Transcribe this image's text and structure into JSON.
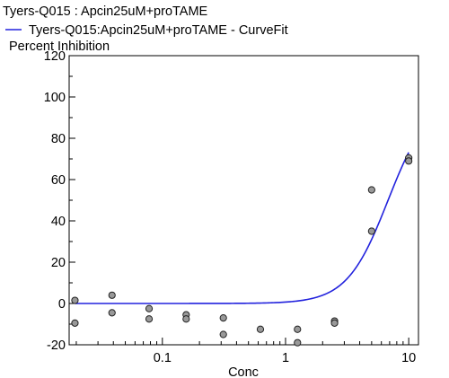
{
  "chart_data": {
    "type": "scatter",
    "title": "Tyers-Q015  : Apcin25uM+proTAME",
    "legend": {
      "placement": "top-left",
      "entries": [
        {
          "label": "Tyers-Q015:Apcin25uM+proTAME - CurveFit",
          "color": "#2222dd",
          "kind": "line"
        }
      ]
    },
    "ylabel": "Percent Inhibition",
    "xlabel": "Conc",
    "x_scale": "log",
    "xlim": [
      0.0175,
      12
    ],
    "ylim": [
      -20,
      120
    ],
    "x_ticks": [
      {
        "value": 0.1,
        "label": "0.1"
      },
      {
        "value": 1,
        "label": "1"
      },
      {
        "value": 10,
        "label": "10"
      }
    ],
    "y_ticks": [
      {
        "value": -20,
        "label": "-20"
      },
      {
        "value": 0,
        "label": "0"
      },
      {
        "value": 20,
        "label": "20"
      },
      {
        "value": 40,
        "label": "40"
      },
      {
        "value": 60,
        "label": "60"
      },
      {
        "value": 80,
        "label": "80"
      },
      {
        "value": 100,
        "label": "100"
      },
      {
        "value": 120,
        "label": "120"
      }
    ],
    "points": {
      "color": "#999999",
      "x": [
        0.0195,
        0.0195,
        0.039,
        0.039,
        0.078,
        0.078,
        0.156,
        0.156,
        0.3125,
        0.3125,
        0.625,
        1.25,
        1.25,
        2.5,
        2.5,
        5,
        5,
        10,
        10
      ],
      "y": [
        1.5,
        -9.5,
        4,
        -4.5,
        -2.5,
        -7.5,
        -5.5,
        -7.5,
        -7,
        -15,
        -12.5,
        -12.5,
        -19,
        -8.5,
        -9.5,
        55,
        35,
        70.5,
        69
      ]
    },
    "curve": {
      "color": "#2222dd",
      "model": "four-parameter logistic",
      "bottom": 0,
      "top": 100,
      "ec50": 6.8,
      "hill": 2.6,
      "x_range": [
        0.0195,
        10
      ]
    },
    "grid": false
  }
}
